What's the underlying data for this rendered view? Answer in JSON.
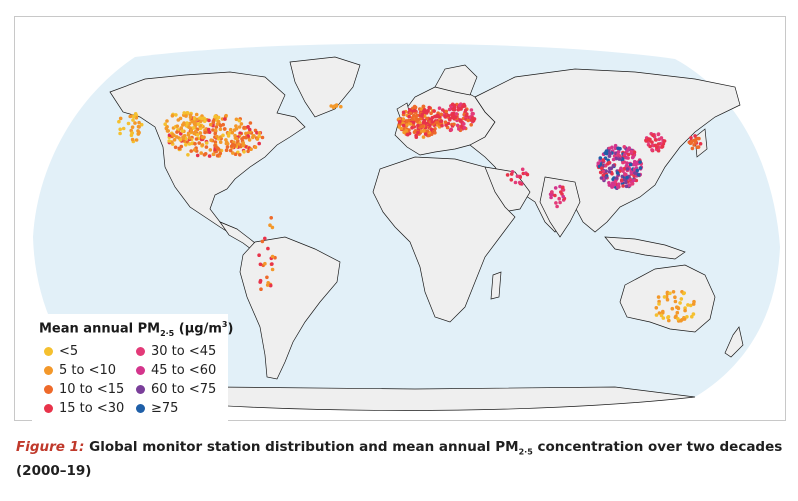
{
  "caption": {
    "label": "Figure 1:",
    "text_before": " Global monitor station distribution and mean annual PM",
    "subscript": "2·5",
    "text_after": " concentration over two decades (2000–19)"
  },
  "legend": {
    "title_prefix": "Mean annual PM",
    "title_sub": "2·5",
    "title_unit_open": " (µg/m",
    "title_sup": "3",
    "title_unit_close": ")",
    "items": [
      {
        "label": "<5",
        "color": "#f5c02f"
      },
      {
        "label": "5 to <10",
        "color": "#f3982a"
      },
      {
        "label": "10 to <15",
        "color": "#ee6a2a"
      },
      {
        "label": "15 to <30",
        "color": "#e8334a"
      },
      {
        "label": "30 to <45",
        "color": "#e33a78"
      },
      {
        "label": "45 to <60",
        "color": "#d4358c"
      },
      {
        "label": "60 to <75",
        "color": "#7a3f9a"
      },
      {
        "label": "≥75",
        "color": "#1f5fa8"
      }
    ]
  },
  "colors": {
    "ocean": "#e2f0f8",
    "land": "#efefef",
    "border": "#1a1a1a",
    "caption_label": "#c0392b"
  }
}
